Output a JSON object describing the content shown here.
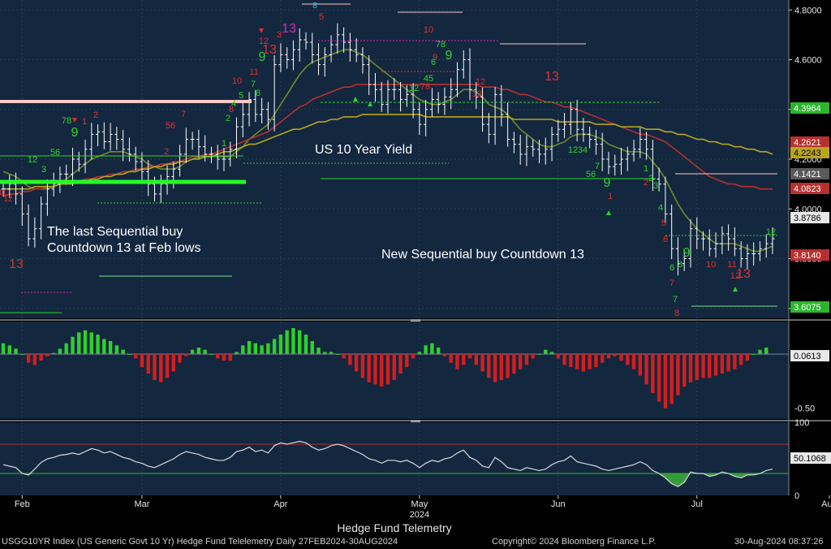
{
  "footer": {
    "index_label": "USGG10YR Index (US Generic Govt 10 Yr) Hedge Fund Telelemetry  Daily 27FEB2024-30AUG2024",
    "copyright": "Copyright© 2024 Bloomberg Finance L.P.",
    "timestamp": "30-Aug-2024 08:37:26"
  },
  "colors": {
    "panel_bg": "#13273f",
    "bar": "#ffffff",
    "ma_short": "#6f8a2a",
    "ma_mid": "#b7302f",
    "ma_long": "#b8a51c",
    "sequential_green": "#2bd62b",
    "countdown_red": "#e0302e",
    "countdown_magenta": "#e026b8",
    "osc_pos": "#2ed12e",
    "osc_neg": "#d41e1e",
    "rsi_line": "#d9d9d9",
    "support_green": "#22ff22",
    "resistance_pink": "#ffc8c8"
  },
  "chart_data": [
    {
      "type": "line",
      "panel": "price",
      "xlabel": "Hedge Fund Telemetry",
      "x_ticks": [
        "Feb",
        "Mar",
        "Apr",
        "May",
        "Jun",
        "Jul",
        "Aug"
      ],
      "x_year": "2024",
      "y_ticks": [
        "4.8000",
        "4.6000",
        "4.4000",
        "4.2000",
        "4.0000",
        "3.8000",
        "3.6000"
      ],
      "ylim": [
        3.56,
        4.84
      ],
      "annotations": [
        "US 10 Year Yield",
        "The last Sequential buy",
        "Countdown 13 at Feb lows",
        "New Sequential buy Countdown 13"
      ],
      "last_value_tags": [
        {
          "label": "4.3964",
          "color": "#2bb52b"
        },
        {
          "label": "4.2621",
          "color": "#b7302f"
        },
        {
          "label": "4.2243",
          "color": "#b8a51c"
        },
        {
          "label": "4.1421",
          "color": "#5a5a5a"
        },
        {
          "label": "4.0823",
          "color": "#b7302f"
        },
        {
          "label": "3.8786",
          "color": "#e8e8e8"
        },
        {
          "label": "3.8140",
          "color": "#b7302f"
        },
        {
          "label": "3.6075",
          "color": "#2bb52b"
        }
      ],
      "series": [
        {
          "name": "",
          "style": "ohlc",
          "close": [
            4.08,
            4.1,
            4.06,
            3.98,
            3.88,
            3.92,
            4.02,
            4.08,
            4.1,
            4.14,
            4.14,
            4.2,
            4.18,
            4.24,
            4.3,
            4.31,
            4.27,
            4.3,
            4.28,
            4.24,
            4.22,
            4.19,
            4.15,
            4.1,
            4.06,
            4.1,
            4.13,
            4.16,
            4.22,
            4.28,
            4.28,
            4.25,
            4.22,
            4.22,
            4.2,
            4.2,
            4.24,
            4.33,
            4.38,
            4.44,
            4.38,
            4.4,
            4.36,
            4.58,
            4.62,
            4.6,
            4.64,
            4.68,
            4.67,
            4.62,
            4.58,
            4.62,
            4.66,
            4.7,
            4.67,
            4.64,
            4.62,
            4.58,
            4.5,
            4.48,
            4.42,
            4.48,
            4.48,
            4.44,
            4.46,
            4.4,
            4.34,
            4.4,
            4.44,
            4.42,
            4.45,
            4.48,
            4.56,
            4.6,
            4.48,
            4.45,
            4.34,
            4.3,
            4.46,
            4.38,
            4.28,
            4.26,
            4.22,
            4.25,
            4.24,
            4.22,
            4.24,
            4.3,
            4.32,
            4.34,
            4.4,
            4.32,
            4.3,
            4.28,
            4.26,
            4.2,
            4.17,
            4.18,
            4.2,
            4.22,
            4.24,
            4.28,
            4.24,
            4.12,
            4.1,
            3.98,
            3.84,
            3.78,
            3.8,
            3.92,
            3.88,
            3.88,
            3.84,
            3.86,
            3.9,
            3.88,
            3.84,
            3.8,
            3.82,
            3.82,
            3.84,
            3.86,
            3.88
          ]
        },
        {
          "name": "",
          "style": "moving-average",
          "values": [
            4.15,
            4.14,
            4.13,
            4.11,
            4.09,
            4.08,
            4.08,
            4.08,
            4.09,
            4.1,
            4.12,
            4.14,
            4.16,
            4.18,
            4.2,
            4.21,
            4.22,
            4.23,
            4.23,
            4.23,
            4.22,
            4.21,
            4.2,
            4.18,
            4.17,
            4.16,
            4.16,
            4.16,
            4.17,
            4.19,
            4.2,
            4.21,
            4.21,
            4.21,
            4.21,
            4.21,
            4.21,
            4.23,
            4.25,
            4.28,
            4.3,
            4.32,
            4.34,
            4.38,
            4.42,
            4.46,
            4.5,
            4.54,
            4.57,
            4.59,
            4.6,
            4.61,
            4.62,
            4.63,
            4.64,
            4.64,
            4.63,
            4.62,
            4.6,
            4.58,
            4.56,
            4.54,
            4.52,
            4.5,
            4.48,
            4.46,
            4.44,
            4.43,
            4.42,
            4.42,
            4.43,
            4.44,
            4.46,
            4.48,
            4.48,
            4.47,
            4.45,
            4.42,
            4.41,
            4.4,
            4.38,
            4.35,
            4.32,
            4.3,
            4.28,
            4.26,
            4.25,
            4.25,
            4.26,
            4.27,
            4.29,
            4.3,
            4.3,
            4.3,
            4.29,
            4.28,
            4.26,
            4.25,
            4.24,
            4.23,
            4.23,
            4.23,
            4.22,
            4.19,
            4.16,
            4.12,
            4.07,
            4.02,
            3.98,
            3.95,
            3.92,
            3.9,
            3.88,
            3.86,
            3.86,
            3.86,
            3.86,
            3.85,
            3.84,
            3.83,
            3.83,
            3.84,
            3.85
          ]
        },
        {
          "name": "",
          "style": "moving-average",
          "values": [
            4.05,
            4.06,
            4.06,
            4.07,
            4.07,
            4.08,
            4.08,
            4.09,
            4.09,
            4.1,
            4.1,
            4.11,
            4.11,
            4.12,
            4.12,
            4.13,
            4.13,
            4.14,
            4.14,
            4.15,
            4.15,
            4.16,
            4.16,
            4.17,
            4.17,
            4.18,
            4.18,
            4.19,
            4.19,
            4.2,
            4.21,
            4.21,
            4.22,
            4.22,
            4.23,
            4.24,
            4.25,
            4.26,
            4.27,
            4.28,
            4.29,
            4.3,
            4.31,
            4.33,
            4.35,
            4.37,
            4.39,
            4.41,
            4.42,
            4.44,
            4.45,
            4.46,
            4.47,
            4.48,
            4.49,
            4.49,
            4.5,
            4.5,
            4.5,
            4.5,
            4.5,
            4.5,
            4.5,
            4.5,
            4.5,
            4.5,
            4.5,
            4.5,
            4.5,
            4.5,
            4.5,
            4.5,
            4.5,
            4.5,
            4.5,
            4.5,
            4.49,
            4.49,
            4.49,
            4.48,
            4.48,
            4.47,
            4.46,
            4.46,
            4.45,
            4.44,
            4.43,
            4.43,
            4.42,
            4.41,
            4.41,
            4.4,
            4.39,
            4.38,
            4.37,
            4.36,
            4.35,
            4.34,
            4.33,
            4.32,
            4.31,
            4.3,
            4.3,
            4.29,
            4.28,
            4.27,
            4.25,
            4.23,
            4.21,
            4.19,
            4.17,
            4.15,
            4.13,
            4.12,
            4.11,
            4.1,
            4.1,
            4.09,
            4.09,
            4.09,
            4.08,
            4.08,
            4.08
          ]
        },
        {
          "name": "",
          "style": "moving-average",
          "values": [
            4.08,
            4.08,
            4.08,
            4.08,
            4.08,
            4.09,
            4.09,
            4.09,
            4.09,
            4.1,
            4.1,
            4.1,
            4.11,
            4.11,
            4.12,
            4.12,
            4.13,
            4.13,
            4.14,
            4.14,
            4.15,
            4.15,
            4.16,
            4.16,
            4.17,
            4.17,
            4.18,
            4.18,
            4.19,
            4.19,
            4.2,
            4.2,
            4.21,
            4.21,
            4.22,
            4.23,
            4.23,
            4.24,
            4.25,
            4.26,
            4.26,
            4.27,
            4.28,
            4.29,
            4.3,
            4.31,
            4.32,
            4.32,
            4.33,
            4.34,
            4.35,
            4.35,
            4.36,
            4.36,
            4.37,
            4.37,
            4.37,
            4.38,
            4.38,
            4.38,
            4.38,
            4.38,
            4.38,
            4.38,
            4.38,
            4.38,
            4.38,
            4.37,
            4.37,
            4.37,
            4.37,
            4.37,
            4.37,
            4.37,
            4.37,
            4.37,
            4.37,
            4.37,
            4.37,
            4.37,
            4.37,
            4.36,
            4.36,
            4.36,
            4.36,
            4.36,
            4.36,
            4.36,
            4.35,
            4.35,
            4.35,
            4.35,
            4.35,
            4.35,
            4.34,
            4.34,
            4.34,
            4.34,
            4.33,
            4.33,
            4.33,
            4.33,
            4.32,
            4.32,
            4.32,
            4.31,
            4.31,
            4.3,
            4.3,
            4.29,
            4.28,
            4.28,
            4.27,
            4.27,
            4.26,
            4.26,
            4.25,
            4.25,
            4.24,
            4.24,
            4.23,
            4.23,
            4.22
          ]
        }
      ]
    },
    {
      "type": "bar",
      "panel": "oscillator",
      "y_ticks": [
        "0.00",
        "-0.50"
      ],
      "ylim": [
        -0.6,
        0.3
      ],
      "last_value_tag": "0.0613",
      "values": [
        0.1,
        0.08,
        0.05,
        0.0,
        -0.08,
        -0.1,
        -0.06,
        -0.02,
        0.01,
        0.05,
        0.1,
        0.16,
        0.2,
        0.22,
        0.2,
        0.18,
        0.14,
        0.12,
        0.08,
        0.04,
        0.0,
        -0.04,
        -0.12,
        -0.18,
        -0.24,
        -0.26,
        -0.22,
        -0.16,
        -0.08,
        -0.02,
        0.04,
        0.06,
        0.04,
        0.0,
        -0.04,
        -0.06,
        -0.06,
        0.02,
        0.08,
        0.12,
        0.1,
        0.08,
        0.1,
        0.14,
        0.18,
        0.22,
        0.24,
        0.22,
        0.18,
        0.12,
        0.06,
        0.02,
        0.02,
        0.0,
        -0.04,
        -0.1,
        -0.16,
        -0.22,
        -0.26,
        -0.28,
        -0.3,
        -0.28,
        -0.24,
        -0.18,
        -0.12,
        -0.04,
        0.02,
        0.08,
        0.1,
        0.06,
        -0.02,
        -0.08,
        -0.14,
        -0.1,
        -0.04,
        -0.1,
        -0.16,
        -0.22,
        -0.26,
        -0.24,
        -0.22,
        -0.18,
        -0.14,
        -0.1,
        -0.04,
        0.0,
        0.04,
        0.02,
        -0.04,
        -0.1,
        -0.12,
        -0.14,
        -0.16,
        -0.14,
        -0.12,
        -0.08,
        -0.04,
        -0.02,
        -0.06,
        -0.1,
        -0.14,
        -0.2,
        -0.28,
        -0.36,
        -0.44,
        -0.5,
        -0.46,
        -0.38,
        -0.3,
        -0.26,
        -0.24,
        -0.22,
        -0.22,
        -0.2,
        -0.18,
        -0.16,
        -0.14,
        -0.1,
        -0.06,
        0.0,
        0.04,
        0.06
      ]
    },
    {
      "type": "line",
      "panel": "rsi",
      "y_ticks": [
        "100",
        "50",
        "0"
      ],
      "ylim": [
        0,
        100
      ],
      "levels": [
        70,
        30
      ],
      "last_value_tag": "50.1068",
      "values": [
        42,
        40,
        38,
        30,
        28,
        36,
        45,
        50,
        52,
        55,
        56,
        58,
        56,
        60,
        64,
        62,
        58,
        60,
        56,
        52,
        50,
        46,
        44,
        40,
        38,
        42,
        46,
        50,
        56,
        60,
        58,
        56,
        52,
        50,
        48,
        48,
        52,
        60,
        62,
        66,
        60,
        62,
        58,
        68,
        72,
        70,
        72,
        74,
        72,
        66,
        62,
        64,
        68,
        70,
        68,
        64,
        60,
        56,
        50,
        48,
        44,
        48,
        48,
        46,
        48,
        44,
        38,
        44,
        48,
        46,
        50,
        52,
        58,
        62,
        52,
        48,
        40,
        38,
        52,
        46,
        38,
        36,
        34,
        38,
        36,
        34,
        36,
        42,
        46,
        48,
        54,
        46,
        44,
        42,
        40,
        36,
        34,
        36,
        38,
        40,
        42,
        46,
        42,
        34,
        30,
        24,
        16,
        12,
        18,
        32,
        30,
        30,
        26,
        28,
        32,
        30,
        26,
        24,
        28,
        28,
        30,
        34,
        36
      ]
    }
  ]
}
